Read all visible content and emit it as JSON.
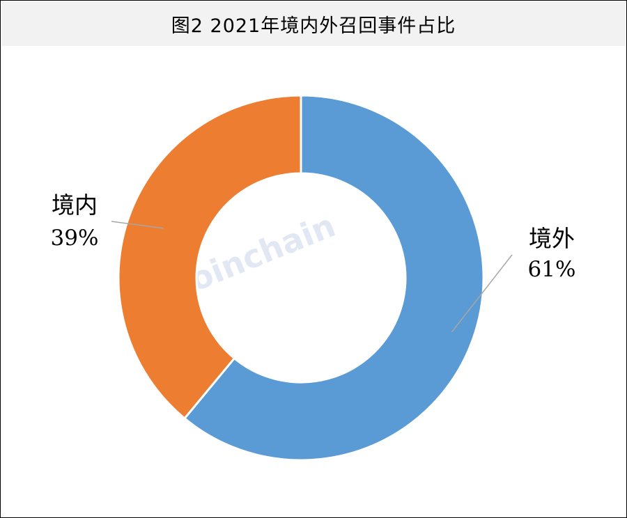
{
  "title": "图2 2021年境内外召回事件占比",
  "watermark": "Joinchain",
  "chart_data": {
    "type": "pie",
    "title": "图2 2021年境内外召回事件占比",
    "donut": true,
    "slices": [
      {
        "name": "境外",
        "value": 61,
        "label": "61%",
        "color": "#5b9bd5"
      },
      {
        "name": "境内",
        "value": 39,
        "label": "39%",
        "color": "#ed7d31"
      }
    ]
  }
}
